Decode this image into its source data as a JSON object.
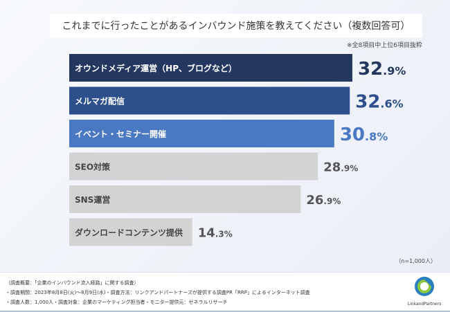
{
  "chart_data": {
    "type": "bar",
    "orientation": "horizontal",
    "title": "これまでに行ったことがあるインバウンド施策を教えてください（複数回答可）",
    "note": "※全8項目中上位6項目抜粋",
    "sample": "（n=1,000人）",
    "unit": "%",
    "categories": [
      "オウンドメディア運営（HP、ブログなど）",
      "メルマガ配信",
      "イベント・セミナー開催",
      "SEO対策",
      "SNS運営",
      "ダウンロードコンテンツ提供"
    ],
    "values": [
      32.9,
      32.6,
      30.8,
      28.9,
      26.9,
      14.3
    ],
    "bar_colors": [
      "#24385f",
      "#2d4f8c",
      "#4a78c2",
      "#d3d3d3",
      "#d3d3d3",
      "#d3d3d3"
    ],
    "value_colors": [
      "#24385f",
      "#2d4f8c",
      "#4a78c2",
      "#555555",
      "#555555",
      "#555555"
    ],
    "label_colors": [
      "#ffffff",
      "#ffffff",
      "#ffffff",
      "#444444",
      "#444444",
      "#444444"
    ]
  },
  "footer": {
    "lines": [
      "（調査概要：「企業のインバウンド流入経路」に関する調査）",
      "・調査期間：2023年8月8日(火)～8月9日(水)・調査方法：リンクアンドパートナーズが提供する調査PR「RRP」によるインターネット調査",
      "・調査人数：1,000人・調査対象：企業のマーケティング担当者・モニター提供元：ゼネラルリサーチ"
    ],
    "logo_text": "LinkandPartners"
  }
}
